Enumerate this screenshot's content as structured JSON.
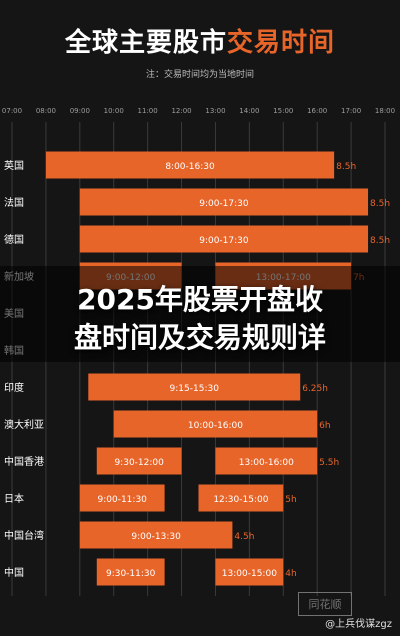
{
  "header": {
    "title_main": "全球主要股市",
    "title_accent": "交易时间",
    "note": "注：交易时间均为当地时间"
  },
  "chart_data": {
    "type": "bar",
    "orientation": "horizontal-range",
    "x_ticks": [
      "07:00",
      "08:00",
      "09:00",
      "10:00",
      "11:00",
      "12:00",
      "13:00",
      "14:00",
      "15:00",
      "16:00",
      "17:00",
      "18:00"
    ],
    "xlim": [
      7,
      18
    ],
    "grid": true,
    "bar_color": "#e8652a",
    "rows": [
      {
        "label": "英国",
        "sessions": [
          {
            "start": 8.0,
            "end": 16.5,
            "label": "8:00-16:30"
          }
        ],
        "total": "8.5h"
      },
      {
        "label": "法国",
        "sessions": [
          {
            "start": 9.0,
            "end": 17.5,
            "label": "9:00-17:30"
          }
        ],
        "total": "8.5h"
      },
      {
        "label": "德国",
        "sessions": [
          {
            "start": 9.0,
            "end": 17.5,
            "label": "9:00-17:30"
          }
        ],
        "total": "8.5h"
      },
      {
        "label": "新加坡",
        "sessions": [
          {
            "start": 9.0,
            "end": 12.0,
            "label": "9:00-12:00"
          },
          {
            "start": 13.0,
            "end": 17.0,
            "label": "13:00-17:00"
          }
        ],
        "total": "7h"
      },
      {
        "label": "美国",
        "sessions": [],
        "total": ""
      },
      {
        "label": "韩国",
        "sessions": [],
        "total": ""
      },
      {
        "label": "印度",
        "sessions": [
          {
            "start": 9.25,
            "end": 15.5,
            "label": "9:15-15:30"
          }
        ],
        "total": "6.25h"
      },
      {
        "label": "澳大利亚",
        "sessions": [
          {
            "start": 10.0,
            "end": 16.0,
            "label": "10:00-16:00"
          }
        ],
        "total": "6h"
      },
      {
        "label": "中国香港",
        "sessions": [
          {
            "start": 9.5,
            "end": 12.0,
            "label": "9:30-12:00"
          },
          {
            "start": 13.0,
            "end": 16.0,
            "label": "13:00-16:00"
          }
        ],
        "total": "5.5h"
      },
      {
        "label": "日本",
        "sessions": [
          {
            "start": 9.0,
            "end": 11.5,
            "label": "9:00-11:30"
          },
          {
            "start": 12.5,
            "end": 15.0,
            "label": "12:30-15:00"
          }
        ],
        "total": "5h"
      },
      {
        "label": "中国台湾",
        "sessions": [
          {
            "start": 9.0,
            "end": 13.5,
            "label": "9:00-13:30"
          }
        ],
        "total": "4.5h"
      },
      {
        "label": "中国",
        "sessions": [
          {
            "start": 9.5,
            "end": 11.5,
            "label": "9:30-11:30"
          },
          {
            "start": 13.0,
            "end": 15.0,
            "label": "13:00-15:00"
          }
        ],
        "total": "4h"
      }
    ]
  },
  "overlay": {
    "line1": "2025年股票开盘收",
    "line2": "盘时间及交易规则详"
  },
  "watermark": {
    "badge": "同花顺",
    "text": "@上兵伐谋zgz"
  }
}
